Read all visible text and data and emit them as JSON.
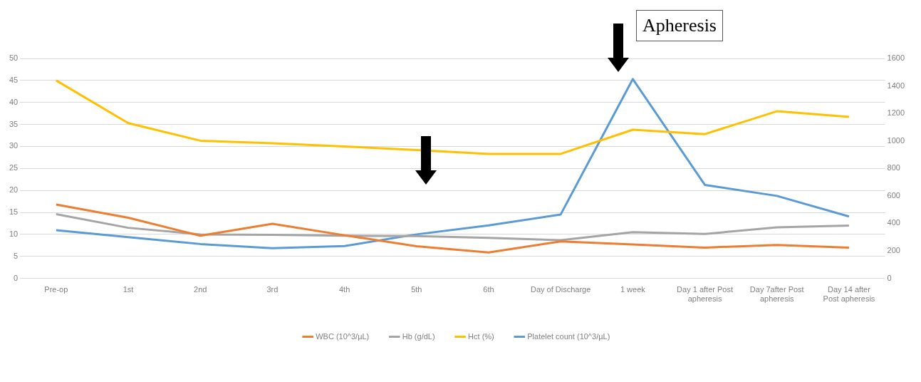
{
  "chart_data": {
    "type": "line",
    "categories": [
      "Pre-op",
      "1st",
      "2nd",
      "3rd",
      "4th",
      "5th",
      "6th",
      "Day of Discharge",
      "1 week",
      "Day 1 after Post apheresis",
      "Day 7after Post apheresis",
      "Day 14 after Post apheresis"
    ],
    "series": [
      {
        "name": "WBC (10^3/µL)",
        "color": "#ed7d31",
        "values": [
          16.8,
          13.8,
          9.7,
          12.4,
          9.8,
          7.3,
          5.9,
          8.4,
          7.7,
          7,
          7.6,
          7
        ]
      },
      {
        "name": "Hb (g/dL)",
        "color": "#a5a5a5",
        "values": [
          14.6,
          11.5,
          10,
          9.9,
          9.7,
          9.6,
          9.2,
          8.7,
          10.5,
          10.1,
          11.6,
          12
        ]
      },
      {
        "name": "Hct (%)",
        "color": "#ffc000",
        "values": [
          45,
          35.3,
          31.3,
          30.7,
          30,
          29.2,
          28.3,
          28.3,
          33.8,
          32.8,
          38,
          36.7
        ]
      },
      {
        "name": "Platelet count (10^3/µL)",
        "color": "#5b9bd5",
        "axis": "y2",
        "values": [
          350,
          300,
          250,
          220,
          235,
          320,
          385,
          465,
          1450,
          680,
          600,
          450
        ]
      }
    ],
    "ylim": [
      0,
      50
    ],
    "yticks": [
      0,
      5,
      10,
      15,
      20,
      25,
      30,
      35,
      40,
      45,
      50
    ],
    "y2lim": [
      0,
      1600
    ],
    "y2ticks": [
      0,
      200,
      400,
      600,
      800,
      1000,
      1200,
      1400,
      1600
    ],
    "grid": "y",
    "legend": "bottom",
    "marker": "none",
    "line_style": "solid",
    "annotations": [
      "Apheresis"
    ]
  }
}
